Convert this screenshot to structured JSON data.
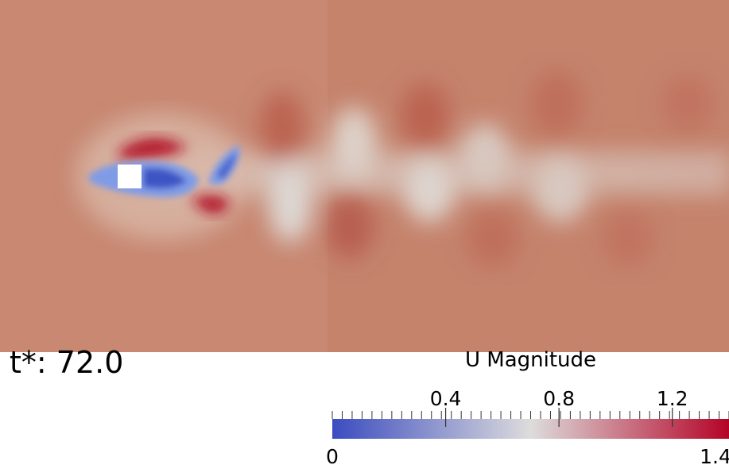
{
  "time_label": "t*: 72.0",
  "legend": {
    "title": "U Magnitude",
    "range": [
      0,
      1.4
    ],
    "colors": [
      "#3b4cc0",
      "#dddcdc",
      "#b40426"
    ],
    "ticks": [
      {
        "value": 0.4,
        "label": "0.4"
      },
      {
        "value": 0.8,
        "label": "0.8"
      },
      {
        "value": 1.2,
        "label": "1.2"
      }
    ],
    "min_label": "0",
    "max_label": "1.4"
  }
}
